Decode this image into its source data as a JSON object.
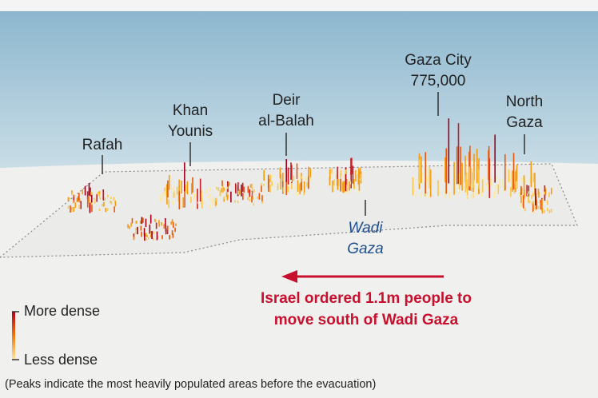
{
  "places": [
    {
      "lines": [
        "Rafah"
      ]
    },
    {
      "lines": [
        "Khan",
        "Younis"
      ]
    },
    {
      "lines": [
        "Deir",
        "al-Balah"
      ]
    },
    {
      "lines": [
        "Gaza City",
        "775,000"
      ]
    },
    {
      "lines": [
        "North",
        "Gaza"
      ]
    }
  ],
  "wadi": {
    "lines": [
      "Wadi",
      "Gaza"
    ]
  },
  "annotation": {
    "lines": [
      "Israel ordered 1.1m people to",
      "move south of Wadi Gaza"
    ]
  },
  "legend": {
    "high": "More dense",
    "low": "Less dense"
  },
  "footnote": "(Peaks indicate the most heavily populated areas before the evacuation)"
}
